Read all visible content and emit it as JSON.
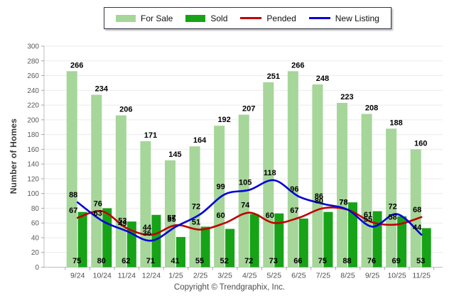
{
  "chart_data": {
    "type": "bar+line",
    "title": "",
    "xlabel": "",
    "ylabel": "Number of Homes",
    "ylim": [
      0,
      300
    ],
    "ytick_step": 20,
    "grid": "horizontal",
    "legend_position": "top-center",
    "categories": [
      "9/24",
      "10/24",
      "11/24",
      "12/24",
      "1/25",
      "2/25",
      "3/25",
      "4/25",
      "5/25",
      "6/25",
      "7/25",
      "8/25",
      "9/25",
      "10/25",
      "11/25"
    ],
    "series": [
      {
        "name": "For Sale",
        "kind": "bar",
        "color": "#A6D69A",
        "values": [
          266,
          234,
          206,
          171,
          145,
          164,
          192,
          207,
          251,
          266,
          248,
          223,
          208,
          188,
          160
        ]
      },
      {
        "name": "Sold",
        "kind": "bar",
        "color": "#17A317",
        "values": [
          75,
          80,
          62,
          71,
          41,
          55,
          52,
          72,
          73,
          66,
          75,
          88,
          76,
          69,
          53
        ]
      },
      {
        "name": "Pended",
        "kind": "line",
        "color": "#C00000",
        "values": [
          67,
          76,
          53,
          44,
          57,
          51,
          60,
          74,
          60,
          67,
          80,
          78,
          61,
          58,
          68
        ]
      },
      {
        "name": "New Listing",
        "kind": "line",
        "color": "#0000D8",
        "values": [
          88,
          63,
          49,
          36,
          55,
          72,
          99,
          105,
          118,
          96,
          86,
          78,
          55,
          72,
          44
        ]
      }
    ]
  },
  "footer": {
    "copyright": "Copyright © Trendgraphix, Inc."
  },
  "colors": {
    "grid": "#EBEBEB",
    "axis": "#BFBFBF",
    "tick": "#A6A6A6",
    "ytick_label": "#595959",
    "xtick_label": "#4D4D4D",
    "value_label": "#000000"
  }
}
